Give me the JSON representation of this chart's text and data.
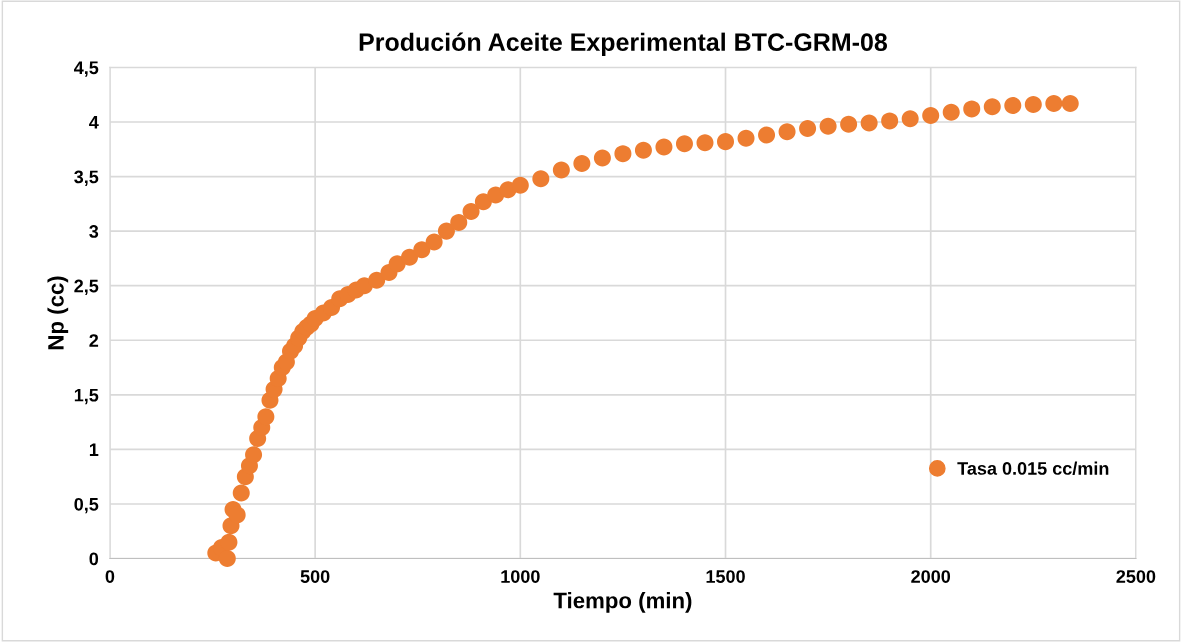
{
  "chart_data": {
    "type": "scatter",
    "title": "Produción Aceite Experimental BTC-GRM-08",
    "xlabel": "Tiempo (min)",
    "ylabel": "Np (cc)",
    "xlim": [
      0,
      2500
    ],
    "xticks": [
      0,
      500,
      1000,
      1500,
      2000,
      2500
    ],
    "ylim": [
      0,
      4.5
    ],
    "yticks": [
      0,
      {
        "value": 0.5,
        "label": "0,5"
      },
      1,
      {
        "value": 1.5,
        "label": "1,5"
      },
      2,
      {
        "value": 2.5,
        "label": "2,5"
      },
      3,
      {
        "value": 3.5,
        "label": "3,5"
      },
      4,
      {
        "value": 4.5,
        "label": "4,5"
      }
    ],
    "grid": true,
    "legend": "bottom right",
    "marker": "circle",
    "series": [
      {
        "name": "Tasa 0.015 cc/min",
        "color": "#ed7d31",
        "x": [
          258,
          272,
          286,
          290,
          295,
          300,
          310,
          320,
          330,
          340,
          350,
          360,
          370,
          380,
          390,
          400,
          410,
          420,
          430,
          440,
          450,
          460,
          470,
          480,
          490,
          500,
          520,
          540,
          560,
          580,
          600,
          620,
          650,
          680,
          700,
          730,
          760,
          790,
          820,
          850,
          880,
          910,
          940,
          970,
          1000,
          1050,
          1100,
          1150,
          1200,
          1250,
          1300,
          1350,
          1400,
          1450,
          1500,
          1550,
          1600,
          1650,
          1700,
          1750,
          1800,
          1850,
          1900,
          1950,
          2000,
          2050,
          2100,
          2150,
          2200,
          2250,
          2300,
          2340
        ],
        "values": [
          0.05,
          0.1,
          0,
          0.15,
          0.3,
          0.45,
          0.4,
          0.6,
          0.75,
          0.85,
          0.95,
          1.1,
          1.2,
          1.3,
          1.45,
          1.55,
          1.65,
          1.75,
          1.8,
          1.9,
          1.95,
          2.02,
          2.08,
          2.12,
          2.15,
          2.2,
          2.25,
          2.3,
          2.38,
          2.42,
          2.46,
          2.5,
          2.55,
          2.62,
          2.7,
          2.76,
          2.83,
          2.9,
          3.0,
          3.08,
          3.18,
          3.27,
          3.33,
          3.38,
          3.42,
          3.48,
          3.56,
          3.62,
          3.67,
          3.71,
          3.74,
          3.77,
          3.8,
          3.81,
          3.82,
          3.85,
          3.88,
          3.91,
          3.94,
          3.96,
          3.98,
          3.99,
          4.01,
          4.03,
          4.06,
          4.09,
          4.12,
          4.14,
          4.15,
          4.16,
          4.17,
          4.17
        ]
      }
    ]
  }
}
